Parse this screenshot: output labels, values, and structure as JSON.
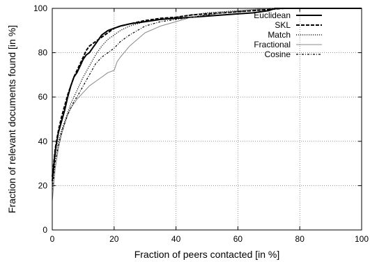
{
  "chart_data": {
    "type": "line",
    "title": "",
    "xlabel": "Fraction of peers contacted [in %]",
    "ylabel": "Fraction of relevant documents found [in %]",
    "xlim": [
      0,
      100
    ],
    "ylim": [
      0,
      100
    ],
    "xticks": [
      0,
      20,
      40,
      60,
      80,
      100
    ],
    "yticks": [
      0,
      20,
      40,
      60,
      80,
      100
    ],
    "xtick_labels": [
      "0",
      "20",
      "40",
      "60",
      "80",
      "100"
    ],
    "ytick_labels": [
      "0",
      "20",
      "40",
      "60",
      "80",
      "100"
    ],
    "grid": true,
    "legend_position": "top-right",
    "series": [
      {
        "name": "Euclidean",
        "style": "solid",
        "stroke_width": 2,
        "color": "#000000",
        "x": [
          0,
          1,
          2,
          3,
          4,
          5,
          6,
          7,
          8,
          9,
          10,
          11,
          12,
          13,
          14,
          15,
          16,
          17,
          18,
          20,
          22,
          25,
          30,
          35,
          40,
          45,
          50,
          55,
          60,
          65,
          70,
          72,
          75,
          80,
          90,
          100
        ],
        "y": [
          22,
          36,
          44,
          49,
          54,
          60,
          65,
          69,
          71,
          74,
          77,
          79,
          80,
          82,
          84,
          86,
          88,
          89,
          90,
          91,
          92,
          93,
          94,
          95,
          95.5,
          96,
          96.5,
          97,
          97.5,
          98,
          99,
          100,
          100,
          100,
          100,
          100
        ]
      },
      {
        "name": "SKL",
        "style": "dashed",
        "stroke_width": 2,
        "color": "#000000",
        "x": [
          0,
          1,
          2,
          3,
          4,
          5,
          6,
          7,
          8,
          9,
          10,
          11,
          12,
          13,
          14,
          15,
          16,
          17,
          18,
          20,
          22,
          25,
          30,
          35,
          40,
          45,
          50,
          55,
          60,
          65,
          70,
          75,
          80,
          90,
          100
        ],
        "y": [
          24,
          37,
          45,
          51,
          56,
          61,
          65,
          69,
          72,
          75,
          78,
          81,
          83,
          84,
          85,
          86,
          87,
          88,
          89,
          91,
          92,
          93,
          94.5,
          95.5,
          96,
          97,
          97.5,
          98,
          98.5,
          99,
          99.5,
          100,
          100,
          100,
          100
        ]
      },
      {
        "name": "Match",
        "style": "dotted",
        "stroke_width": 1.2,
        "color": "#000000",
        "x": [
          0,
          1,
          2,
          3,
          4,
          5,
          6,
          7,
          8,
          10,
          12,
          14,
          16,
          18,
          20,
          22,
          25,
          30,
          35,
          40,
          45,
          50,
          55,
          60,
          65,
          70,
          75,
          80,
          90,
          100
        ],
        "y": [
          20,
          33,
          40,
          45,
          49,
          53,
          57,
          60,
          63,
          69,
          74,
          79,
          83,
          86,
          88,
          90,
          92,
          94,
          95,
          96,
          97,
          98,
          98.5,
          99,
          99.5,
          100,
          100,
          100,
          100,
          100
        ]
      },
      {
        "name": "Fractional",
        "style": "solid-thin",
        "stroke_width": 1,
        "color": "#888888",
        "x": [
          0,
          1,
          2,
          3,
          4,
          5,
          6,
          7,
          8,
          10,
          12,
          14,
          16,
          18,
          20,
          21,
          22,
          25,
          30,
          35,
          40,
          45,
          50,
          55,
          60,
          65,
          70,
          75,
          80,
          90,
          100
        ],
        "y": [
          13,
          28,
          37,
          43,
          48,
          52,
          55,
          57,
          59,
          62,
          65,
          67,
          69,
          71,
          72,
          76,
          78,
          83,
          89,
          92,
          94,
          96,
          97,
          98,
          99,
          99.5,
          100,
          100,
          100,
          100,
          100
        ]
      },
      {
        "name": "Cosine",
        "style": "dash-dot",
        "stroke_width": 1.2,
        "color": "#000000",
        "x": [
          0,
          1,
          2,
          3,
          4,
          5,
          6,
          7,
          8,
          10,
          12,
          14,
          16,
          18,
          20,
          22,
          25,
          30,
          35,
          40,
          45,
          50,
          55,
          60,
          65,
          70,
          75,
          80,
          90,
          100
        ],
        "y": [
          18,
          31,
          38,
          44,
          48,
          52,
          55,
          58,
          60,
          65,
          70,
          75,
          78,
          80,
          82,
          85,
          88,
          92,
          94,
          95,
          96,
          97,
          98,
          98.5,
          99,
          99.5,
          100,
          100,
          100,
          100
        ]
      }
    ]
  }
}
